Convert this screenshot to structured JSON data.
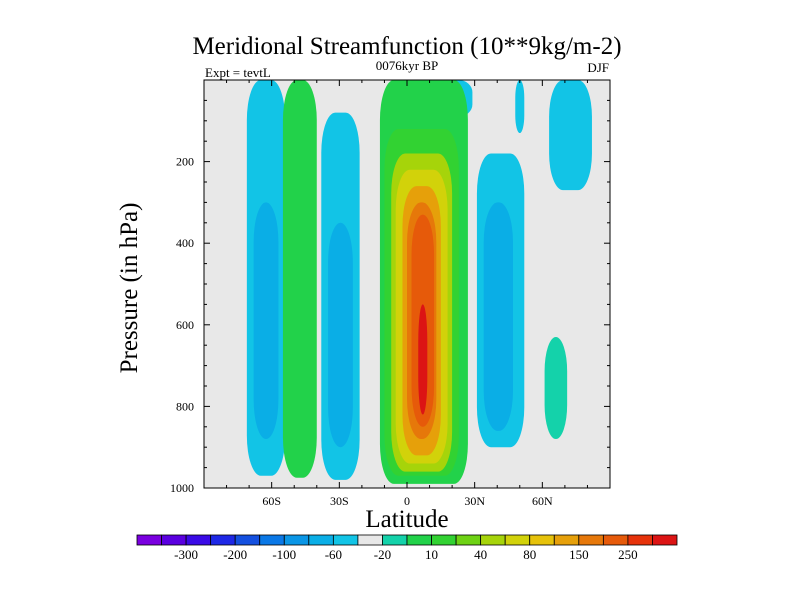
{
  "chart_data": {
    "type": "heatmap",
    "title": "Meridional Streamfunction (10**9kg/m-2)",
    "left_string": "Expt = tevtL",
    "center_string": "0076kyr BP",
    "right_string": "DJF",
    "xlabel": "Latitude",
    "ylabel": "Pressure (in hPa)",
    "xlim": [
      -90,
      90
    ],
    "ylim": [
      1000,
      0
    ],
    "x_ticks": [
      {
        "value": -60,
        "label": "60S"
      },
      {
        "value": -30,
        "label": "30S"
      },
      {
        "value": 0,
        "label": "0"
      },
      {
        "value": 30,
        "label": "30N"
      },
      {
        "value": 60,
        "label": "60N"
      }
    ],
    "y_ticks": [
      {
        "value": 200,
        "label": "200"
      },
      {
        "value": 400,
        "label": "400"
      },
      {
        "value": 600,
        "label": "600"
      },
      {
        "value": 800,
        "label": "800"
      },
      {
        "value": 1000,
        "label": "1000"
      }
    ],
    "colorbar": {
      "colors": [
        "#7a00e0",
        "#5a00e0",
        "#3a0ae6",
        "#1e28e6",
        "#1450e0",
        "#0a78e6",
        "#0a96e6",
        "#0aaee6",
        "#12c4e6",
        "#e8e8e8",
        "#14d2aa",
        "#22d24a",
        "#32d232",
        "#6ed214",
        "#a6d40a",
        "#d2d20a",
        "#e6c20a",
        "#e6a00a",
        "#e6780a",
        "#e65a0a",
        "#e6320a",
        "#dc1414"
      ],
      "labels": [
        "-300",
        "-200",
        "-100",
        "-60",
        "-20",
        "10",
        "40",
        "80",
        "150",
        "250"
      ],
      "label_after_box": [
        1,
        3,
        5,
        7,
        9,
        11,
        13,
        15,
        17,
        19
      ]
    },
    "regions": [
      {
        "level": 8,
        "lat": [
          -71,
          -54
        ],
        "p": [
          0,
          970
        ]
      },
      {
        "level": 7,
        "lat": [
          -68,
          -57
        ],
        "p": [
          300,
          880
        ]
      },
      {
        "level": 8,
        "lat": [
          -38,
          -21
        ],
        "p": [
          80,
          980
        ]
      },
      {
        "level": 7,
        "lat": [
          -35,
          -24
        ],
        "p": [
          350,
          900
        ]
      },
      {
        "level": 8,
        "lat": [
          -3,
          2
        ],
        "p": [
          0,
          70
        ]
      },
      {
        "level": 8,
        "lat": [
          14,
          29
        ],
        "p": [
          0,
          90
        ]
      },
      {
        "level": 8,
        "lat": [
          31,
          52
        ],
        "p": [
          180,
          900
        ]
      },
      {
        "level": 7,
        "lat": [
          34,
          47
        ],
        "p": [
          300,
          860
        ]
      },
      {
        "level": 8,
        "lat": [
          48,
          52
        ],
        "p": [
          0,
          130
        ]
      },
      {
        "level": 8,
        "lat": [
          63,
          82
        ],
        "p": [
          0,
          270
        ]
      },
      {
        "level": 11,
        "lat": [
          -55,
          -40
        ],
        "p": [
          0,
          975
        ]
      },
      {
        "level": 11,
        "lat": [
          -12,
          27
        ],
        "p": [
          0,
          990
        ]
      },
      {
        "level": 12,
        "lat": [
          -10,
          23
        ],
        "p": [
          120,
          970
        ]
      },
      {
        "level": 14,
        "lat": [
          -7,
          20
        ],
        "p": [
          180,
          960
        ]
      },
      {
        "level": 15,
        "lat": [
          -5,
          18
        ],
        "p": [
          220,
          940
        ]
      },
      {
        "level": 17,
        "lat": [
          -2,
          15
        ],
        "p": [
          260,
          920
        ]
      },
      {
        "level": 18,
        "lat": [
          0,
          13
        ],
        "p": [
          300,
          880
        ]
      },
      {
        "level": 19,
        "lat": [
          2,
          12
        ],
        "p": [
          330,
          850
        ]
      },
      {
        "level": 21,
        "lat": [
          5,
          9
        ],
        "p": [
          550,
          820
        ]
      },
      {
        "level": 10,
        "lat": [
          61,
          71
        ],
        "p": [
          630,
          880
        ]
      }
    ]
  }
}
